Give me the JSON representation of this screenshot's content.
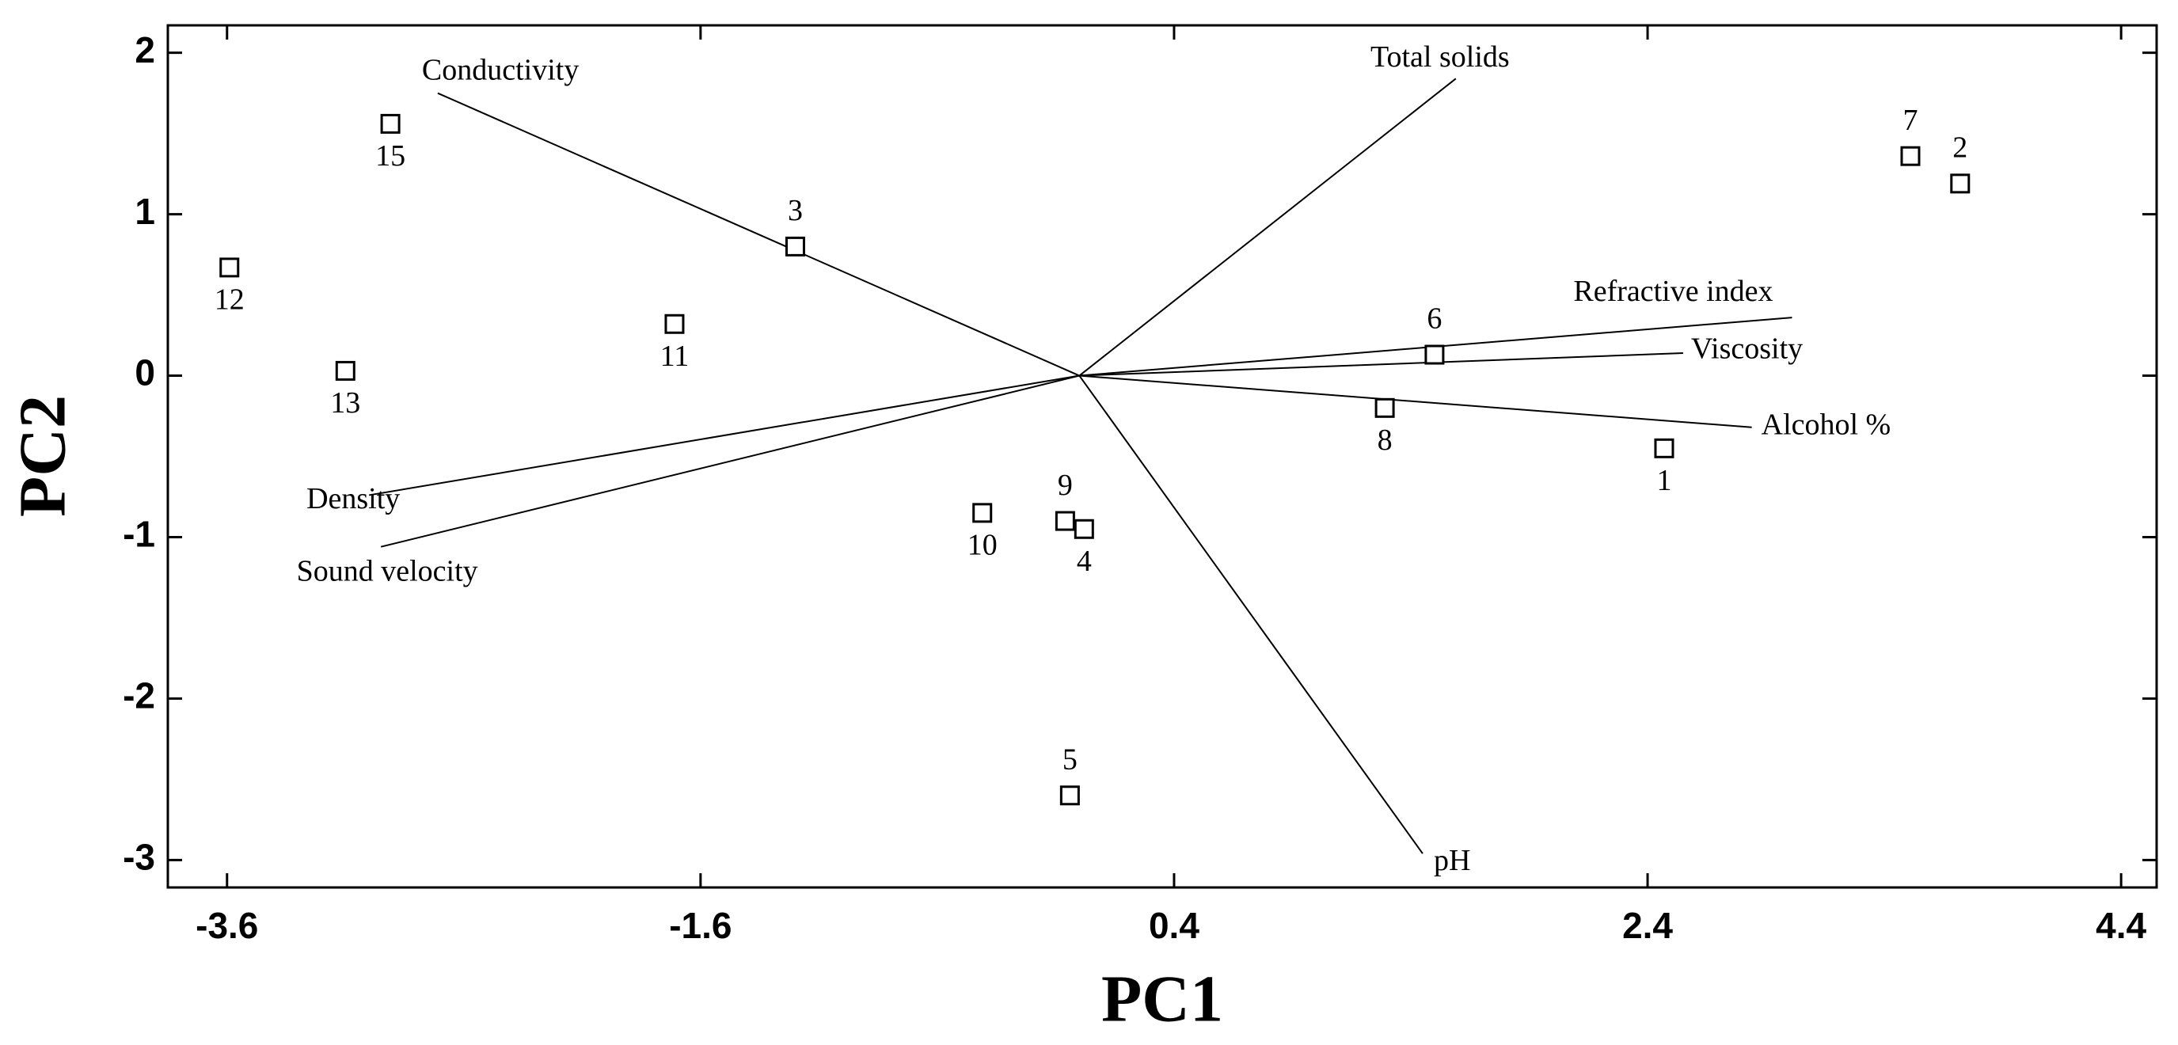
{
  "chart_data": {
    "type": "biplot",
    "x_label": "PC1",
    "y_label": "PC2",
    "xlim": [
      -3.85,
      4.55
    ],
    "ylim": [
      -3.17,
      2.17
    ],
    "xticks": [
      -3.6,
      -1.6,
      0.4,
      2.4,
      4.4
    ],
    "yticks": [
      -3,
      -2,
      -1,
      0,
      1,
      2
    ],
    "points": {
      "labels": [
        "15",
        "3",
        "12",
        "11",
        "13",
        "10",
        "9",
        "4",
        "5",
        "6",
        "8",
        "1",
        "7",
        "2"
      ],
      "x": [
        -2.91,
        -1.2,
        -3.59,
        -1.71,
        -3.1,
        -0.41,
        -0.06,
        0.02,
        -0.04,
        1.5,
        1.29,
        2.47,
        3.51,
        3.72
      ],
      "y": [
        1.56,
        0.8,
        0.67,
        0.32,
        0.03,
        -0.85,
        -0.9,
        -0.95,
        -2.6,
        0.13,
        -0.2,
        -0.45,
        1.36,
        1.19
      ]
    },
    "loadings": {
      "names": [
        "Conductivity",
        "Total solids",
        "Refractive index",
        "Viscosity",
        "Alcohol %",
        "pH",
        "Density",
        "Sound velocity"
      ],
      "x": [
        -2.71,
        1.59,
        3.01,
        2.55,
        2.84,
        1.45,
        -3.0,
        -2.95
      ],
      "y": [
        1.75,
        1.84,
        0.36,
        0.14,
        -0.32,
        -2.96,
        -0.74,
        -1.06
      ]
    }
  }
}
